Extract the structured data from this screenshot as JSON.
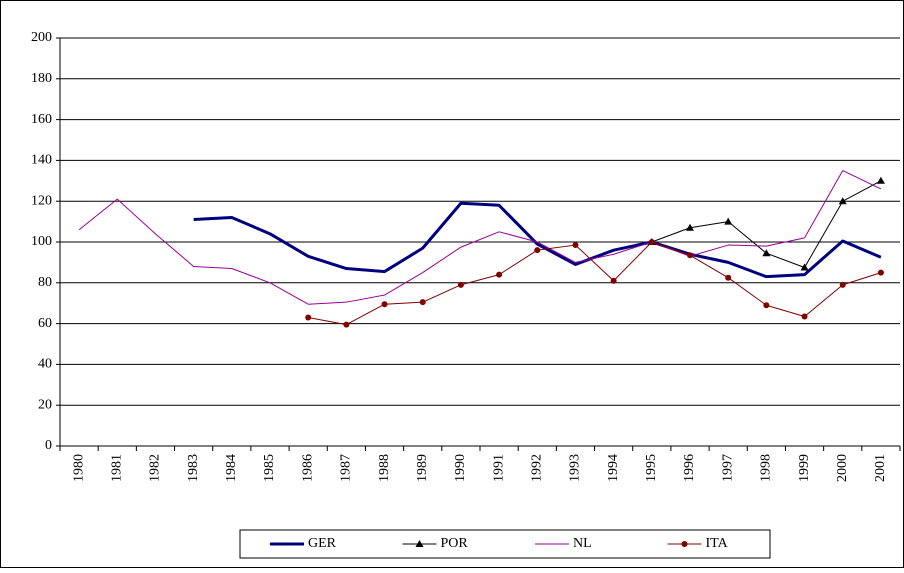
{
  "chart_data": {
    "type": "line",
    "categories": [
      "1980",
      "1981",
      "1982",
      "1983",
      "1984",
      "1985",
      "1986",
      "1987",
      "1988",
      "1989",
      "1990",
      "1991",
      "1992",
      "1993",
      "1994",
      "1995",
      "1996",
      "1997",
      "1998",
      "1999",
      "2000",
      "2001"
    ],
    "series": [
      {
        "name": "GER",
        "color": "#00007f",
        "line_width": 3,
        "marker": "none",
        "values": [
          null,
          null,
          null,
          111,
          112,
          104,
          93,
          87,
          85.5,
          97,
          119,
          118,
          99,
          89,
          96,
          100,
          94,
          90,
          83,
          84,
          100.5,
          92.5
        ]
      },
      {
        "name": "POR",
        "color": "#000000",
        "line_width": 1,
        "marker": "triangle",
        "values": [
          null,
          null,
          null,
          null,
          null,
          null,
          null,
          null,
          null,
          null,
          null,
          null,
          null,
          null,
          null,
          100,
          107,
          110,
          94.5,
          87.5,
          120,
          130
        ]
      },
      {
        "name": "NL",
        "color": "#990099",
        "line_width": 1,
        "marker": "none",
        "values": [
          106,
          121,
          104,
          88,
          87,
          80,
          69.5,
          70.5,
          74,
          85,
          97.5,
          105,
          100,
          90,
          94,
          100,
          93,
          98.5,
          98,
          102,
          135,
          126
        ]
      },
      {
        "name": "ITA",
        "color": "#800000",
        "line_width": 1,
        "marker": "circle",
        "values": [
          null,
          null,
          null,
          null,
          null,
          null,
          63,
          59.5,
          69.5,
          70.5,
          79,
          84,
          96,
          98.5,
          81,
          100,
          93.5,
          82.5,
          69,
          63.5,
          79,
          85
        ]
      }
    ],
    "ylim": [
      0,
      200
    ],
    "yticks": [
      0,
      20,
      40,
      60,
      80,
      100,
      120,
      140,
      160,
      180,
      200
    ],
    "grid": true,
    "legend": "bottom"
  }
}
